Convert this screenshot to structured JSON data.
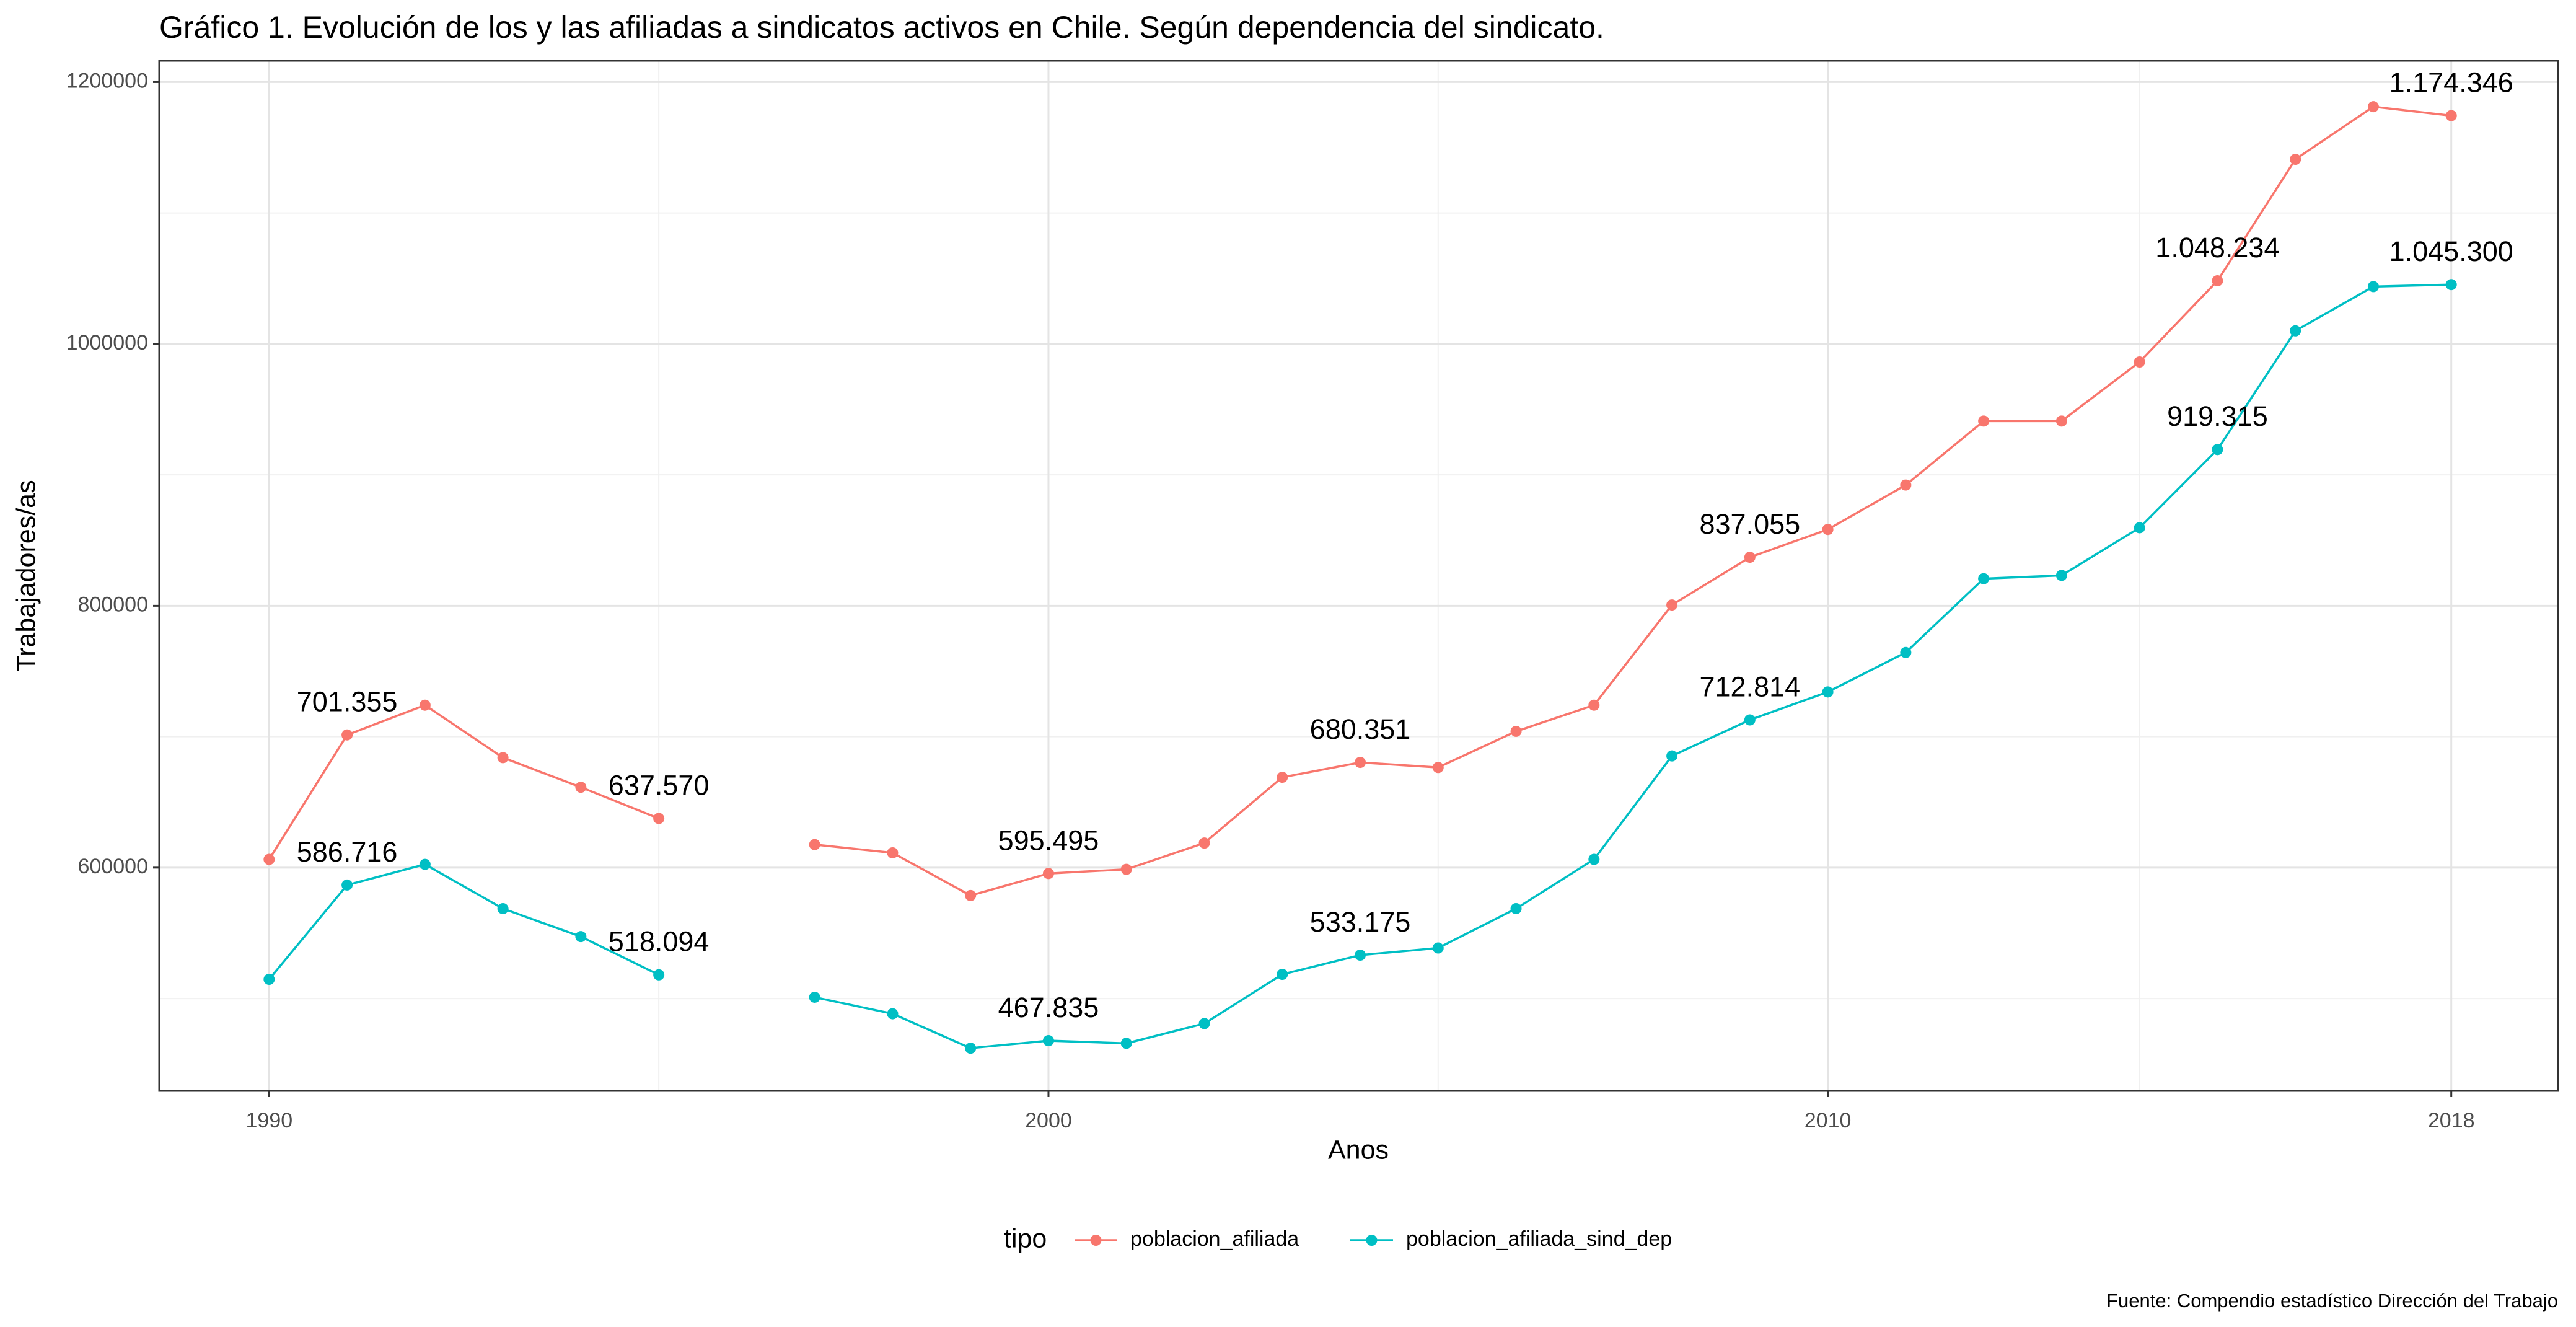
{
  "chart_data": {
    "type": "line",
    "title": "Gráfico 1. Evolución de los y las afiliadas a sindicatos activos en Chile. Según dependencia del sindicato.",
    "x_label": "Anos",
    "y_label": "Trabajadores/as",
    "caption": "Fuente: Compendio estadístico Dirección del Trabajo",
    "legend_title": "tipo",
    "legend_position": "bottom",
    "grid": true,
    "x": [
      1990,
      1991,
      1992,
      1993,
      1994,
      1995,
      1996,
      1997,
      1998,
      1999,
      2000,
      2001,
      2002,
      2003,
      2004,
      2005,
      2006,
      2007,
      2008,
      2009,
      2010,
      2011,
      2012,
      2013,
      2014,
      2015,
      2016,
      2017,
      2018
    ],
    "xlim": [
      1988.59,
      2019.37
    ],
    "xticks": [
      1990,
      2000,
      2010,
      2018
    ],
    "ylim": [
      429500,
      1216300
    ],
    "yticks": [
      600000,
      800000,
      1000000,
      1200000
    ],
    "series": [
      {
        "name": "poblacion_afiliada",
        "color": "#F8766D",
        "values": [
          606300,
          701355,
          724100,
          684000,
          661400,
          637570,
          null,
          617600,
          611300,
          578700,
          595495,
          598700,
          618800,
          669000,
          680351,
          676500,
          704100,
          724100,
          800600,
          837055,
          858300,
          892200,
          941100,
          941100,
          986200,
          1048234,
          1141000,
          1181200,
          1174346
        ],
        "value_labels": [
          null,
          "701.355",
          null,
          null,
          null,
          "637.570",
          null,
          null,
          null,
          null,
          "595.495",
          null,
          null,
          null,
          "680.351",
          null,
          null,
          null,
          null,
          "837.055",
          null,
          null,
          null,
          null,
          null,
          "1.048.234",
          null,
          null,
          "1.174.346"
        ]
      },
      {
        "name": "poblacion_afiliada_sind_dep",
        "color": "#00BFC4",
        "values": [
          514700,
          586716,
          602500,
          568700,
          547300,
          518094,
          null,
          501000,
          488400,
          462100,
          467835,
          465800,
          480900,
          518500,
          533175,
          538600,
          568700,
          606300,
          685300,
          712814,
          734200,
          764300,
          820700,
          823200,
          859600,
          919315,
          1010000,
          1043800,
          1045300
        ],
        "value_labels": [
          null,
          "586.716",
          null,
          null,
          null,
          "518.094",
          null,
          null,
          null,
          null,
          "467.835",
          null,
          null,
          null,
          "533.175",
          null,
          null,
          null,
          null,
          "712.814",
          null,
          null,
          null,
          null,
          null,
          "919.315",
          null,
          null,
          "1.045.300"
        ]
      }
    ]
  }
}
